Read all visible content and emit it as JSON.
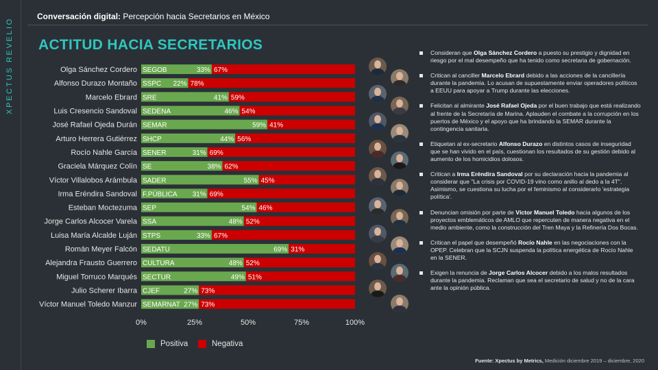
{
  "brand": "XPECTUS REVELIO",
  "header": {
    "label": "Conversación digital:",
    "text": "Percepción hacia Secretarios en México"
  },
  "title": "ACTITUD HACIA SECRETARIOS",
  "colors": {
    "positive": "#6aa84f",
    "negative": "#cc0000",
    "accent": "#2ec7c0",
    "background": "#2b3036"
  },
  "chart_data": {
    "type": "bar",
    "orientation": "horizontal",
    "stacked": true,
    "xlim": [
      0,
      100
    ],
    "ticks": [
      "0%",
      "25%",
      "50%",
      "75%",
      "100%"
    ],
    "legend_position": "bottom",
    "series": [
      {
        "name": "Positiva",
        "color": "#6aa84f"
      },
      {
        "name": "Negativa",
        "color": "#cc0000"
      }
    ],
    "rows": [
      {
        "name": "Olga Sánchez Cordero",
        "dept": "SEGOB",
        "pos": 33,
        "neg": 67
      },
      {
        "name": "Alfonso Durazo Montaño",
        "dept": "SSPC",
        "pos": 22,
        "neg": 78
      },
      {
        "name": "Marcelo Ebrard",
        "dept": "SRE",
        "pos": 41,
        "neg": 59
      },
      {
        "name": "Luis Cresencio Sandoval",
        "dept": "SEDENA",
        "pos": 46,
        "neg": 54
      },
      {
        "name": "José Rafael Ojeda Durán",
        "dept": "SEMAR",
        "pos": 59,
        "neg": 41
      },
      {
        "name": "Arturo Herrera Gutiérrez",
        "dept": "SHCP",
        "pos": 44,
        "neg": 56
      },
      {
        "name": "Rocío Nahle García",
        "dept": "SENER",
        "pos": 31,
        "neg": 69
      },
      {
        "name": "Graciela Márquez Colín",
        "dept": "SE",
        "pos": 38,
        "neg": 62
      },
      {
        "name": "Víctor Villalobos Arámbula",
        "dept": "SADER",
        "pos": 55,
        "neg": 45
      },
      {
        "name": "Irma Eréndira Sandoval",
        "dept": "F.PÚBLICA",
        "pos": 31,
        "neg": 69
      },
      {
        "name": "Esteban Moctezuma",
        "dept": "SEP",
        "pos": 54,
        "neg": 46
      },
      {
        "name": "Jorge Carlos Alcocer Varela",
        "dept": "SSA",
        "pos": 48,
        "neg": 52
      },
      {
        "name": "Luisa María Alcalde Luján",
        "dept": "STPS",
        "pos": 33,
        "neg": 67
      },
      {
        "name": "Román Meyer Falcón",
        "dept": "SEDATU",
        "pos": 69,
        "neg": 31
      },
      {
        "name": "Alejandra Frausto Guerrero",
        "dept": "CULTURA",
        "pos": 48,
        "neg": 52
      },
      {
        "name": "Miguel Torruco Marqués",
        "dept": "SECTUR",
        "pos": 49,
        "neg": 51
      },
      {
        "name": "Julio Scherer Ibarra",
        "dept": "CJEF",
        "pos": 27,
        "neg": 73
      },
      {
        "name": "Víctor Manuel Toledo Manzur",
        "dept": "SEMARNAT",
        "pos": 27,
        "neg": 73
      }
    ]
  },
  "notes": [
    {
      "before": "Consideran que ",
      "bold": "Olga Sánchez Cordero",
      "after": " a puesto su prestigio y dignidad en riesgo por el mal desempeño que ha tenido como secretaria de gobernación."
    },
    {
      "before": "Critican al canciller ",
      "bold": "Marcelo Ebrard",
      "after": " debido a  las acciones de la cancillería durante la pandemia. Lo acusan de supuestamente enviar operadores políticos a EEUU para apoyar a Trump durante las elecciones."
    },
    {
      "before": "Felicitan al almirante ",
      "bold": "José Rafael Ojeda",
      "after": " por el buen trabajo que está realizando al frente de la Secretaría de Marina. Aplauden el combate a la corrupción en los puertos de México y el apoyo que ha brindando la SEMAR durante la contingencia sanitaria."
    },
    {
      "before": "Etiquetan al ex-secretario ",
      "bold": "Alfonso Durazo",
      "after": " en distintos casos de inseguridad que se han vivido en el país,  cuestionan los resultados de su gestión debido al aumento de los homicidios dolosos."
    },
    {
      "before": "Critican a ",
      "bold": "Irma Eréndira Sandoval",
      "after": "  por su declaración hacia la pandemia al considerar que \"La crisis por COVID-19 vino como anillo al dedo a la 4T\". Asimismo, se cuestiona su lucha por el feminismo al considerarlo 'estrategia política'."
    },
    {
      "before": "Denuncian omisión por parte de ",
      "bold": "Víctor Manuel Toledo",
      "after": " hacia algunos de los proyectos emblemáticos de AMLO que repercuten de manera negativa en el medio ambiente, como la construcción del Tren Maya y la Refinería Dos Bocas."
    },
    {
      "before": "Critican el papel que desempeñó ",
      "bold": "Rocío Nahle",
      "after": " en las negociaciones con la OPEP. Celebran que la SCJN suspenda la política energética de Rocío Nahle en la SENER."
    },
    {
      "before": "Exigen la renuncia de ",
      "bold": "Jorge Carlos Alcocer",
      "after": "  debido a los malos resultados durante la pandemia. Reclaman que sea el secretario de salud y no de la cara ante la opinión pública."
    }
  ],
  "footer": {
    "label": "Fuente: Xpectus by Metrics,",
    "text": "Medición diciembre 2019 – diciembre, 2020"
  }
}
